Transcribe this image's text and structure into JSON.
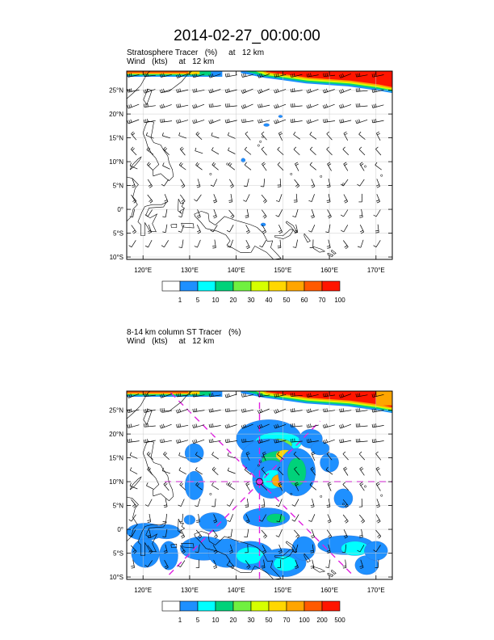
{
  "title": "2014-02-27_00:00:00",
  "panels": [
    {
      "title_line1": "Stratosphere Tracer   (%)     at   12 km",
      "title_line2": "Wind   (kts)     at   12 km",
      "lat_ticks": [
        "25°N",
        "20°N",
        "15°N",
        "10°N",
        "5°N",
        "0°",
        "5°S",
        "10°S"
      ],
      "lon_ticks": [
        "120°E",
        "130°E",
        "140°E",
        "150°E",
        "160°E",
        "170°E"
      ],
      "colorbar_labels": [
        "1",
        "5",
        "10",
        "20",
        "30",
        "40",
        "50",
        "60",
        "70",
        "100"
      ],
      "colorbar_colors": [
        "#ffffff",
        "#1e90ff",
        "#00ffff",
        "#00d27a",
        "#70f040",
        "#d6ff00",
        "#ffd700",
        "#ffa500",
        "#ff5a00",
        "#ff1500"
      ]
    },
    {
      "title_line1": "8-14 km column ST Tracer   (%)",
      "title_line2": "Wind   (kts)     at   12 km",
      "lat_ticks": [
        "25°N",
        "20°N",
        "15°N",
        "10°N",
        "5°N",
        "0°",
        "5°S",
        "10°S"
      ],
      "lon_ticks": [
        "120°E",
        "130°E",
        "140°E",
        "150°E",
        "160°E",
        "170°E"
      ],
      "colorbar_labels": [
        "1",
        "5",
        "10",
        "20",
        "30",
        "50",
        "70",
        "100",
        "200",
        "500"
      ],
      "colorbar_colors": [
        "#ffffff",
        "#1e90ff",
        "#00ffff",
        "#00d27a",
        "#70f040",
        "#d6ff00",
        "#ffd700",
        "#ffa500",
        "#ff5a00",
        "#ff1500"
      ]
    }
  ]
}
